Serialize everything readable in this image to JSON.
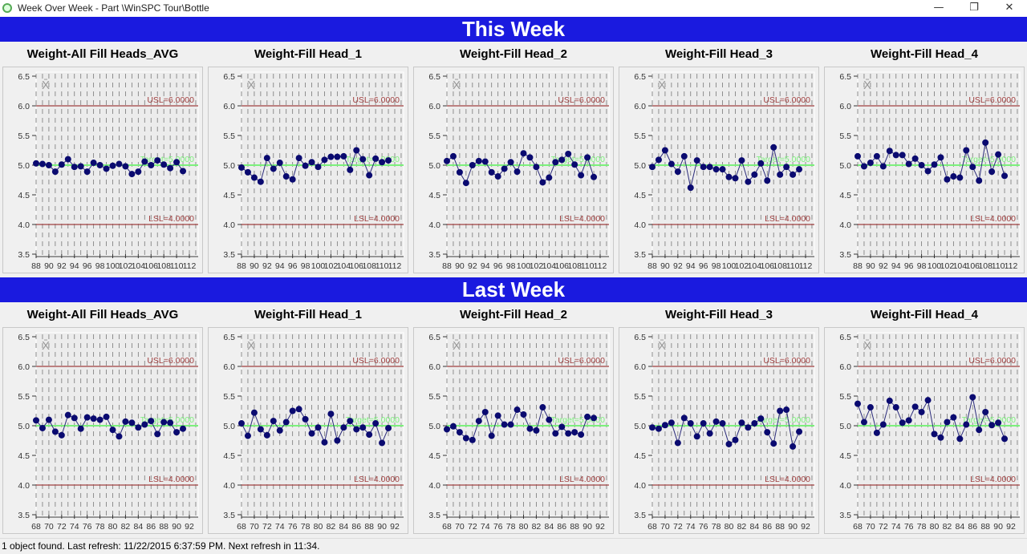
{
  "window": {
    "title": "Week Over Week - Part \\WinSPC Tour\\Bottle",
    "minimize": "—",
    "restore": "❐",
    "close": "✕"
  },
  "sections": [
    {
      "label": "This Week"
    },
    {
      "label": "Last Week"
    }
  ],
  "status": "1 object found.  Last refresh: 11/22/2015 6:37:59 PM.  Next refresh in 11:34.",
  "colors": {
    "band": "#1a1adf",
    "spec": "#a04040",
    "target": "#7cf07c",
    "points": "#0a0a70"
  },
  "chart_data": [
    {
      "type": "line",
      "section": "This Week",
      "title": "Weight-All Fill Heads_AVG",
      "symbol": "X̄",
      "x_start": 88,
      "xticks": [
        88,
        90,
        92,
        94,
        96,
        98,
        100,
        102,
        104,
        106,
        108,
        110,
        112
      ],
      "ylim": [
        3.5,
        6.5
      ],
      "yticks": [
        "6.5",
        "6.0",
        "5.5",
        "5.0",
        "4.5",
        "4.0",
        "3.5"
      ],
      "usl": {
        "value": 6,
        "label": "USL=6.0000"
      },
      "lsl": {
        "value": 4,
        "label": "LSL=4.0000"
      },
      "target": {
        "value": 5,
        "label": "Target=5.0000"
      },
      "values": [
        5.03,
        5.02,
        5.0,
        4.89,
        5.01,
        5.1,
        4.97,
        4.98,
        4.89,
        5.04,
        5.0,
        4.94,
        4.99,
        5.02,
        4.98,
        4.85,
        4.89,
        5.06,
        5.0,
        5.08,
        5.01,
        4.95,
        5.05,
        4.9
      ]
    },
    {
      "type": "line",
      "section": "This Week",
      "title": "Weight-Fill Head_1",
      "symbol": "X̄",
      "x_start": 88,
      "xticks": [
        88,
        90,
        92,
        94,
        96,
        98,
        100,
        102,
        104,
        106,
        108,
        110,
        112
      ],
      "ylim": [
        3.5,
        6.5
      ],
      "yticks": [
        "6.5",
        "6.0",
        "5.5",
        "5.0",
        "4.5",
        "4.0",
        "3.5"
      ],
      "usl": {
        "value": 6,
        "label": "USL=6.0000"
      },
      "lsl": {
        "value": 4,
        "label": "LSL=4.0000"
      },
      "target": {
        "value": 5,
        "label": "Target=5.0000"
      },
      "values": [
        4.96,
        4.88,
        4.79,
        4.72,
        5.12,
        4.94,
        5.04,
        4.81,
        4.76,
        5.12,
        4.99,
        5.05,
        4.97,
        5.09,
        5.14,
        5.14,
        5.15,
        4.92,
        5.25,
        5.1,
        4.83,
        5.11,
        5.05,
        5.08
      ]
    },
    {
      "type": "line",
      "section": "This Week",
      "title": "Weight-Fill Head_2",
      "symbol": "X̄",
      "x_start": 88,
      "xticks": [
        88,
        90,
        92,
        94,
        96,
        98,
        100,
        102,
        104,
        106,
        108,
        110,
        112
      ],
      "ylim": [
        3.5,
        6.5
      ],
      "yticks": [
        "6.5",
        "6.0",
        "5.5",
        "5.0",
        "4.5",
        "4.0",
        "3.5"
      ],
      "usl": {
        "value": 6,
        "label": "USL=6.0000"
      },
      "lsl": {
        "value": 4,
        "label": "LSL=4.0000"
      },
      "target": {
        "value": 5,
        "label": "Target=5.0000"
      },
      "values": [
        5.07,
        5.15,
        4.88,
        4.7,
        5.0,
        5.07,
        5.06,
        4.88,
        4.81,
        4.94,
        5.05,
        4.89,
        5.2,
        5.13,
        4.97,
        4.71,
        4.79,
        5.05,
        5.09,
        5.19,
        5.01,
        4.83,
        5.13,
        4.8
      ]
    },
    {
      "type": "line",
      "section": "This Week",
      "title": "Weight-Fill Head_3",
      "symbol": "X̄",
      "x_start": 88,
      "xticks": [
        88,
        90,
        92,
        94,
        96,
        98,
        100,
        102,
        104,
        106,
        108,
        110,
        112
      ],
      "ylim": [
        3.5,
        6.5
      ],
      "yticks": [
        "6.5",
        "6.0",
        "5.5",
        "5.0",
        "4.5",
        "4.0",
        "3.5"
      ],
      "usl": {
        "value": 6,
        "label": "USL=6.0000"
      },
      "lsl": {
        "value": 4,
        "label": "LSL=4.0000"
      },
      "target": {
        "value": 5,
        "label": "Target=5.0000"
      },
      "values": [
        4.97,
        5.09,
        5.25,
        5.02,
        4.89,
        5.15,
        4.62,
        5.08,
        4.97,
        4.97,
        4.93,
        4.93,
        4.8,
        4.78,
        5.08,
        4.72,
        4.84,
        5.03,
        4.74,
        5.3,
        4.84,
        4.97,
        4.84,
        4.93
      ]
    },
    {
      "type": "line",
      "section": "This Week",
      "title": "Weight-Fill Head_4",
      "symbol": "X̄",
      "x_start": 88,
      "xticks": [
        88,
        90,
        92,
        94,
        96,
        98,
        100,
        102,
        104,
        106,
        108,
        110,
        112
      ],
      "ylim": [
        3.5,
        6.5
      ],
      "yticks": [
        "6.5",
        "6.0",
        "5.5",
        "5.0",
        "4.5",
        "4.0",
        "3.5"
      ],
      "usl": {
        "value": 6,
        "label": "USL=6.0000"
      },
      "lsl": {
        "value": 4,
        "label": "LSL=4.0000"
      },
      "target": {
        "value": 5,
        "label": "Target=5.0000"
      },
      "values": [
        5.15,
        4.98,
        5.04,
        5.15,
        4.98,
        5.24,
        5.17,
        5.17,
        5.02,
        5.11,
        5.0,
        4.9,
        5.01,
        5.13,
        4.76,
        4.81,
        4.79,
        5.25,
        4.97,
        4.74,
        5.38,
        4.89,
        5.18,
        4.82
      ]
    },
    {
      "type": "line",
      "section": "Last Week",
      "title": "Weight-All Fill Heads_AVG",
      "symbol": "X̄",
      "x_start": 68,
      "xticks": [
        68,
        70,
        72,
        74,
        76,
        78,
        80,
        82,
        84,
        86,
        88,
        90,
        92
      ],
      "ylim": [
        3.5,
        6.5
      ],
      "yticks": [
        "6.5",
        "6.0",
        "5.5",
        "5.0",
        "4.5",
        "4.0",
        "3.5"
      ],
      "usl": {
        "value": 6,
        "label": "USL=6.0000"
      },
      "lsl": {
        "value": 4,
        "label": "LSL=4.0000"
      },
      "target": {
        "value": 5,
        "label": "Target=5.0000"
      },
      "values": [
        5.09,
        4.96,
        5.1,
        4.9,
        4.84,
        5.18,
        5.13,
        4.95,
        5.14,
        5.12,
        5.1,
        5.15,
        4.93,
        4.82,
        5.07,
        5.05,
        4.97,
        5.02,
        5.08,
        4.86,
        5.06,
        5.05,
        4.89,
        4.95
      ]
    },
    {
      "type": "line",
      "section": "Last Week",
      "title": "Weight-Fill Head_1",
      "symbol": "X̄",
      "x_start": 68,
      "xticks": [
        68,
        70,
        72,
        74,
        76,
        78,
        80,
        82,
        84,
        86,
        88,
        90,
        92
      ],
      "ylim": [
        3.5,
        6.5
      ],
      "yticks": [
        "6.5",
        "6.0",
        "5.5",
        "5.0",
        "4.5",
        "4.0",
        "3.5"
      ],
      "usl": {
        "value": 6,
        "label": "USL=6.0000"
      },
      "lsl": {
        "value": 4,
        "label": "LSL=4.0000"
      },
      "target": {
        "value": 5,
        "label": "Target=5.0000"
      },
      "values": [
        5.04,
        4.83,
        5.22,
        4.94,
        4.84,
        5.08,
        4.92,
        5.06,
        5.25,
        5.28,
        5.11,
        4.87,
        4.97,
        4.72,
        5.2,
        4.75,
        4.97,
        5.08,
        4.94,
        4.97,
        4.85,
        5.04,
        4.71,
        4.96
      ]
    },
    {
      "type": "line",
      "section": "Last Week",
      "title": "Weight-Fill Head_2",
      "symbol": "X̄",
      "x_start": 68,
      "xticks": [
        68,
        70,
        72,
        74,
        76,
        78,
        80,
        82,
        84,
        86,
        88,
        90,
        92
      ],
      "ylim": [
        3.5,
        6.5
      ],
      "yticks": [
        "6.5",
        "6.0",
        "5.5",
        "5.0",
        "4.5",
        "4.0",
        "3.5"
      ],
      "usl": {
        "value": 6,
        "label": "USL=6.0000"
      },
      "lsl": {
        "value": 4,
        "label": "LSL=4.0000"
      },
      "target": {
        "value": 5,
        "label": "Target=5.0000"
      },
      "values": [
        4.94,
        4.99,
        4.89,
        4.79,
        4.76,
        5.08,
        5.23,
        4.83,
        5.17,
        5.02,
        5.02,
        5.27,
        5.19,
        4.95,
        4.92,
        5.31,
        5.1,
        4.87,
        4.98,
        4.87,
        4.89,
        4.85,
        5.15,
        5.13
      ]
    },
    {
      "type": "line",
      "section": "Last Week",
      "title": "Weight-Fill Head_3",
      "symbol": "X̄",
      "x_start": 68,
      "xticks": [
        68,
        70,
        72,
        74,
        76,
        78,
        80,
        82,
        84,
        86,
        88,
        90,
        92
      ],
      "ylim": [
        3.5,
        6.5
      ],
      "yticks": [
        "6.5",
        "6.0",
        "5.5",
        "5.0",
        "4.5",
        "4.0",
        "3.5"
      ],
      "usl": {
        "value": 6,
        "label": "USL=6.0000"
      },
      "lsl": {
        "value": 4,
        "label": "LSL=4.0000"
      },
      "target": {
        "value": 5,
        "label": "Target=5.0000"
      },
      "values": [
        4.97,
        4.95,
        5.01,
        5.05,
        4.71,
        5.13,
        5.04,
        4.82,
        5.04,
        4.87,
        5.07,
        5.04,
        4.69,
        4.76,
        5.05,
        4.97,
        5.04,
        5.12,
        4.89,
        4.7,
        5.25,
        5.27,
        4.65,
        4.9
      ]
    },
    {
      "type": "line",
      "section": "Last Week",
      "title": "Weight-Fill Head_4",
      "symbol": "X̄",
      "x_start": 68,
      "xticks": [
        68,
        70,
        72,
        74,
        76,
        78,
        80,
        82,
        84,
        86,
        88,
        90,
        92
      ],
      "ylim": [
        3.5,
        6.5
      ],
      "yticks": [
        "6.5",
        "6.0",
        "5.5",
        "5.0",
        "4.5",
        "4.0",
        "3.5"
      ],
      "usl": {
        "value": 6,
        "label": "USL=6.0000"
      },
      "lsl": {
        "value": 4,
        "label": "LSL=4.0000"
      },
      "target": {
        "value": 5,
        "label": "Target=5.0000"
      },
      "values": [
        5.37,
        5.06,
        5.31,
        4.88,
        5.02,
        5.42,
        5.31,
        5.05,
        5.09,
        5.32,
        5.23,
        5.43,
        4.86,
        4.8,
        5.06,
        5.14,
        4.78,
        5.02,
        5.48,
        4.93,
        5.23,
        5.01,
        5.05,
        4.78
      ]
    }
  ]
}
